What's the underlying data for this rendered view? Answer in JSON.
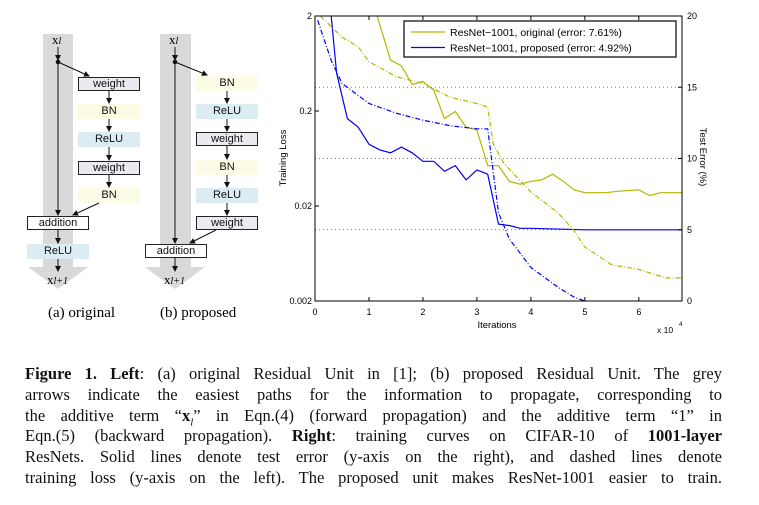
{
  "diagrams": {
    "original": {
      "label": "(a) original",
      "input": "x",
      "input_sub": "l",
      "output": "x",
      "output_sub": "l+1",
      "branch": [
        "weight",
        "BN",
        "ReLU",
        "weight",
        "BN"
      ],
      "addition": "addition",
      "after": "ReLU"
    },
    "proposed": {
      "label": "(b) proposed",
      "input": "x",
      "input_sub": "l",
      "output": "x",
      "output_sub": "l+1",
      "branch": [
        "BN",
        "ReLU",
        "weight",
        "BN",
        "ReLU",
        "weight"
      ],
      "addition": "addition"
    },
    "colors": {
      "shortcut": "#d9d9d9",
      "BN": "#fcfbe6",
      "ReLU": "#dbecf2",
      "weight": "#ebeaf1"
    }
  },
  "chart_data": {
    "type": "line",
    "xlabel": "Iterations",
    "x_multiplier": "x 10",
    "x_multiplier_exp": "4",
    "xlim": [
      0,
      6.8
    ],
    "xticks": [
      "0",
      "1",
      "2",
      "3",
      "4",
      "5",
      "6"
    ],
    "ylabel_left": "Training Loss",
    "ylim_left": [
      0.002,
      2
    ],
    "yscale_left": "log",
    "yticks_left": [
      "2",
      "0.2",
      "0.02",
      "0.002"
    ],
    "ylabel_right": "Test Error (%)",
    "ylim_right": [
      0,
      20
    ],
    "yticks_right": [
      "20",
      "15",
      "10",
      "5",
      "0"
    ],
    "grid": "dotted horizontal at right-axis 5, 10, 15",
    "legend_position": "top-right",
    "colors": {
      "original": "#b5b800",
      "proposed": "#0000ff"
    },
    "series": [
      {
        "name": "ResNet−1001, original (error: 7.61%)",
        "key": "original",
        "style": "solid",
        "axis": "right",
        "x": [
          1.15,
          1.4,
          1.6,
          1.8,
          2.0,
          2.2,
          2.4,
          2.6,
          2.8,
          3.0,
          3.2,
          3.4,
          3.6,
          3.8,
          4.0,
          4.2,
          4.4,
          4.6,
          4.8,
          5.0,
          5.4,
          5.6,
          6.0,
          6.2,
          6.4,
          6.8
        ],
        "y": [
          20,
          16.9,
          16.5,
          15.2,
          15.4,
          14.8,
          12.8,
          13.3,
          12.2,
          12.0,
          9.5,
          9.5,
          8.4,
          8.2,
          8.4,
          8.5,
          8.9,
          8.4,
          7.8,
          7.6,
          7.6,
          7.7,
          7.8,
          7.4,
          7.6,
          7.6
        ]
      },
      {
        "name": "ResNet−1001, proposed (error: 4.92%)",
        "key": "proposed",
        "style": "solid",
        "axis": "right",
        "x": [
          0.3,
          0.4,
          0.6,
          0.8,
          1.0,
          1.2,
          1.4,
          1.6,
          1.8,
          2.0,
          2.2,
          2.4,
          2.6,
          2.8,
          3.0,
          3.2,
          3.4,
          3.6,
          3.8,
          4.0,
          5.0,
          6.0,
          6.8
        ],
        "y": [
          20,
          16,
          12.8,
          12.2,
          11,
          10.6,
          10.4,
          10.8,
          10.4,
          9.8,
          9.8,
          9.1,
          9.5,
          8.5,
          9.2,
          8.9,
          5.4,
          5.3,
          5.1,
          5.1,
          5.0,
          5.0,
          5.0
        ]
      },
      {
        "key": "original",
        "style": "dashed",
        "axis": "left",
        "x": [
          0.1,
          0.5,
          0.8,
          1.0,
          1.5,
          2.0,
          2.5,
          3.0,
          3.2,
          3.3,
          3.5,
          4.0,
          4.5,
          4.8,
          5.0,
          5.5,
          6.0,
          6.5,
          6.8
        ],
        "y": [
          2,
          1.2,
          0.95,
          0.66,
          0.46,
          0.39,
          0.28,
          0.24,
          0.22,
          0.091,
          0.056,
          0.028,
          0.017,
          0.011,
          0.0074,
          0.0048,
          0.0043,
          0.0035,
          0.0035
        ]
      },
      {
        "key": "proposed",
        "style": "dashed",
        "axis": "left",
        "x": [
          0.05,
          0.3,
          0.5,
          1.0,
          1.5,
          2.0,
          2.5,
          3.0,
          3.2,
          3.4,
          3.6,
          4.0,
          4.5,
          4.8,
          5.0
        ],
        "y": [
          1.8,
          0.68,
          0.39,
          0.24,
          0.19,
          0.16,
          0.14,
          0.13,
          0.13,
          0.017,
          0.009,
          0.0045,
          0.0028,
          0.0022,
          0.002
        ]
      }
    ]
  },
  "caption": {
    "lines": [
      [
        {
          "t": "Figure 1.",
          "b": true
        },
        {
          "t": " "
        },
        {
          "t": "Left",
          "b": true
        },
        {
          "t": ": (a) original Residual Unit in [1]; (b) proposed Residual Unit. The grey"
        }
      ],
      [
        {
          "t": "arrows indicate the easiest paths for the information to propagate, corresponding to"
        }
      ],
      [
        {
          "t": "the additive term “"
        },
        {
          "t": "x",
          "b": true
        },
        {
          "t": "l",
          "i": true
        },
        {
          "t": "” in Eqn.(4) (forward propagation) and the additive term “1” in"
        }
      ],
      [
        {
          "t": "Eqn.(5) (backward propagation). "
        },
        {
          "t": "Right",
          "b": true
        },
        {
          "t": ": training curves on CIFAR-10 of "
        },
        {
          "t": "1001-layer",
          "b": true
        }
      ],
      [
        {
          "t": "ResNets. Solid lines denote test error (y-axis on the right), and dashed lines denote"
        }
      ],
      [
        {
          "t": "training loss (y-axis on the left). The proposed unit makes ResNet-1001 easier to train."
        }
      ]
    ]
  }
}
